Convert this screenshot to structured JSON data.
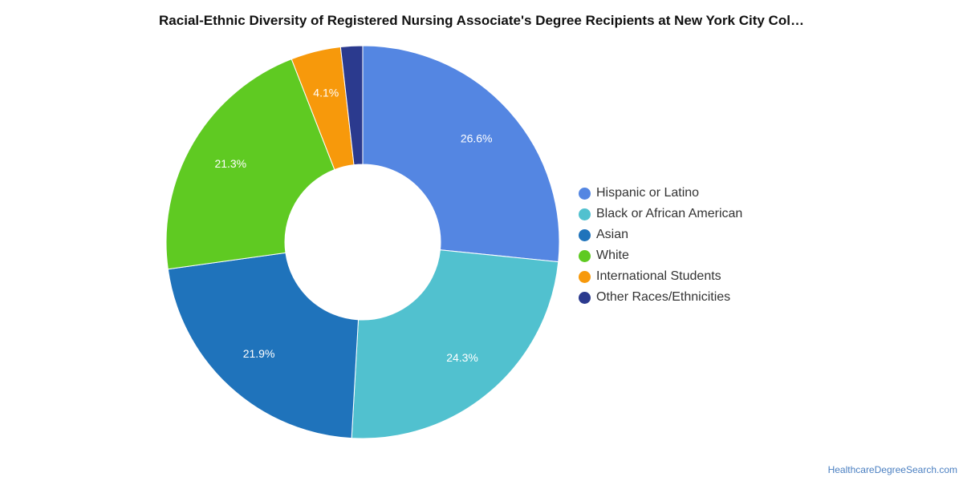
{
  "chart_data": {
    "type": "pie",
    "title": "Racial-Ethnic Diversity of Registered Nursing Associate's Degree Recipients at New York City Col…",
    "categories": [
      "Hispanic or Latino",
      "Black or African American",
      "Asian",
      "White",
      "International Students",
      "Other Races/Ethnicities"
    ],
    "values": [
      26.6,
      24.3,
      21.9,
      21.3,
      4.1,
      1.8
    ],
    "labels": [
      "26.6%",
      "24.3%",
      "21.9%",
      "21.3%",
      "4.1%",
      ""
    ],
    "colors": [
      "#5486e2",
      "#51c1cf",
      "#1f73bb",
      "#5fca22",
      "#f7990b",
      "#2b3a8e"
    ],
    "donut": true,
    "legend_position": "right"
  },
  "source": "HealthcareDegreeSearch.com"
}
